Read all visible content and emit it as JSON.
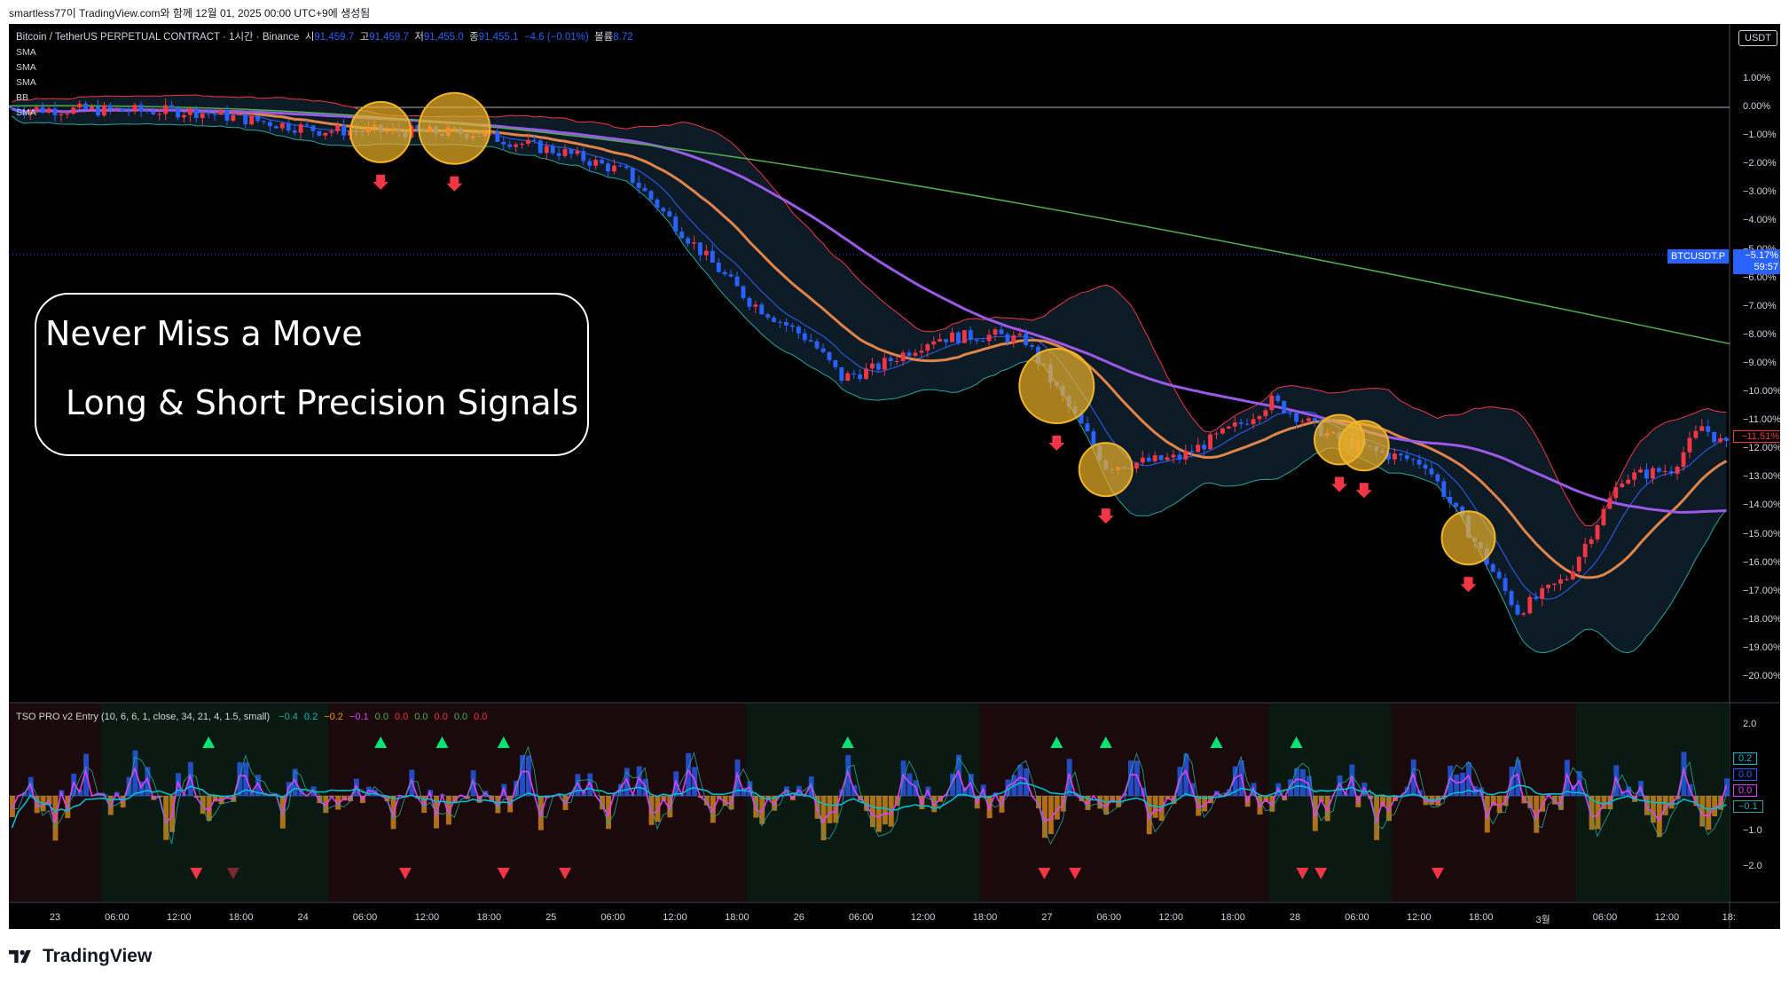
{
  "header": {
    "snapshot_note": "smartless77이 TradingView.com와 함께 12월 01, 2025 00:00 UTC+9에 생성됨"
  },
  "symbol": {
    "title": "Bitcoin / TetherUS PERPETUAL CONTRACT · 1시간 · Binance",
    "open_label": "시",
    "open": "91,459.7",
    "high_label": "고",
    "high": "91,459.7",
    "low_label": "저",
    "low": "91,455.0",
    "close_label": "종",
    "close": "91,455.1",
    "change": "−4.6 (−0.01%)",
    "volume_label": "볼륨",
    "volume": "8.72"
  },
  "indicators": [
    "SMA",
    "SMA",
    "SMA",
    "BB",
    "SMA"
  ],
  "promo": {
    "line1": "Never Miss a Move",
    "line2": "Long & Short Precision Signals"
  },
  "axis": {
    "currency": "USDT",
    "percent_ticks": [
      "1.00%",
      "0.00%",
      "−1.00%",
      "−2.00%",
      "−3.00%",
      "−4.00%",
      "−5.00%",
      "−6.00%",
      "−7.00%",
      "−8.00%",
      "−9.00%",
      "−10.00%",
      "−11.00%",
      "−12.00%",
      "−13.00%",
      "−14.00%",
      "−15.00%",
      "−16.00%",
      "−17.00%",
      "−18.00%",
      "−19.00%",
      "−20.00%"
    ],
    "symbol_tag": "BTCUSDT.P",
    "last_value": "−5.17%",
    "countdown": "59:57",
    "marker_value": "−11.51%"
  },
  "oscillator": {
    "title": "TSO PRO v2 Entry (10, 6, 6, 1, close, 34, 21, 4, 1.5, small)",
    "values": [
      {
        "v": "−0.4",
        "color": "#26a69a"
      },
      {
        "v": "0.2",
        "color": "#00bcd4"
      },
      {
        "v": "−0.2",
        "color": "#ff9800"
      },
      {
        "v": "−0.1",
        "color": "#e040fb"
      },
      {
        "v": "0.0",
        "color": "#4caf50"
      },
      {
        "v": "0.0",
        "color": "#f23645"
      },
      {
        "v": "0.0",
        "color": "#4caf50"
      },
      {
        "v": "0.0",
        "color": "#f23645"
      },
      {
        "v": "0.0",
        "color": "#4caf50"
      },
      {
        "v": "0.0",
        "color": "#f23645"
      }
    ],
    "axis_ticks": [
      "2.0",
      "1.0",
      "−1.0",
      "−2.0"
    ],
    "tags": [
      {
        "v": "0.2",
        "color": "#00bcd4"
      },
      {
        "v": "0.0",
        "color": "#2962ff"
      },
      {
        "v": "0.0",
        "color": "#e040fb"
      },
      {
        "v": "−0.1",
        "color": "#26a69a"
      }
    ]
  },
  "time_axis": [
    "23",
    "06:00",
    "12:00",
    "18:00",
    "24",
    "06:00",
    "12:00",
    "18:00",
    "25",
    "06:00",
    "12:00",
    "18:00",
    "26",
    "06:00",
    "12:00",
    "18:00",
    "27",
    "06:00",
    "12:00",
    "18:00",
    "28",
    "06:00",
    "12:00",
    "18:00",
    "3월",
    "06:00",
    "12:00",
    "18:"
  ],
  "footer": {
    "brand": "TradingView"
  },
  "colors": {
    "up": "#f23645",
    "down": "#2962ff",
    "ema_orange": "#e0844a",
    "sma_purple": "#9b59e8",
    "sma_green": "#4caf50",
    "bb": "#f23645"
  }
}
